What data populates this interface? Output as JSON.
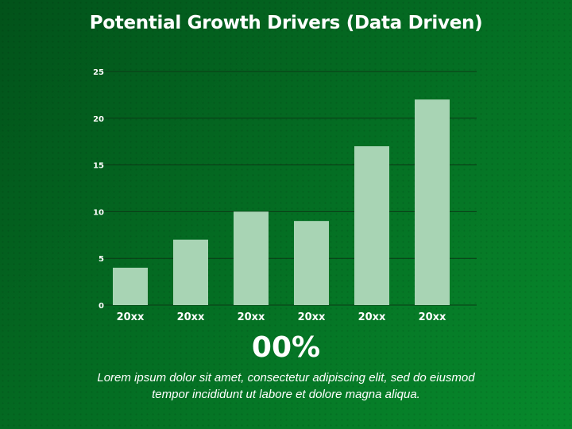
{
  "slide": {
    "title": "Potential Growth Drivers (Data Driven)",
    "big_value": "00%",
    "body_text": "Lorem ipsum dolor sit amet, consectetur adipiscing elit, sed do eiusmod tempor incididunt ut labore et dolore magna aliqua."
  },
  "colors": {
    "background_start": "#02521a",
    "background_end": "#078a2c",
    "bar_fill": "#a8d4b4",
    "gridline": "#0b3a16",
    "text": "#ffffff"
  },
  "chart_data": {
    "type": "bar",
    "categories": [
      "20xx",
      "20xx",
      "20xx",
      "20xx",
      "20xx",
      "20xx"
    ],
    "values": [
      4,
      7,
      10,
      9,
      17,
      22
    ],
    "ylim": [
      0,
      25
    ],
    "yticks": [
      0,
      5,
      10,
      15,
      20,
      25
    ],
    "grid": true,
    "legend": "none"
  }
}
